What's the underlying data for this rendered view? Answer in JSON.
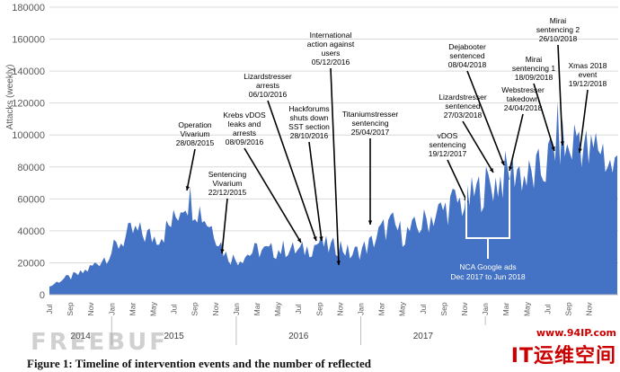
{
  "chart_data": {
    "type": "area",
    "ylabel": "Attacks (weekly)",
    "ylim": [
      0,
      180000
    ],
    "yticks": [
      0,
      20000,
      40000,
      60000,
      80000,
      100000,
      120000,
      140000,
      160000,
      180000
    ],
    "ytick_labels": [
      "0",
      "20000",
      "40000",
      "60000",
      "80000",
      "100000",
      "120000",
      "140000",
      "160000",
      "180000"
    ],
    "fill_color": "#4472c4",
    "month_labels": [
      "Jul",
      "Sep",
      "Nov",
      "Jan",
      "Mar",
      "May",
      "Jul",
      "Sep",
      "Nov",
      "Jan",
      "Mar",
      "May",
      "Jul",
      "Sep",
      "Nov",
      "Jan",
      "Mar",
      "May",
      "Jul",
      "Sep",
      "Nov",
      "Jan",
      "Mar",
      "May",
      "Jul",
      "Sep",
      "Nov"
    ],
    "year_labels": [
      "2014",
      "2015",
      "2016",
      "2017"
    ],
    "x": [
      "2014-07",
      "2014-08",
      "2014-09",
      "2014-10",
      "2014-11",
      "2014-12",
      "2015-01",
      "2015-02",
      "2015-03",
      "2015-04",
      "2015-05",
      "2015-06",
      "2015-07",
      "2015-08",
      "2015-09",
      "2015-10",
      "2015-11",
      "2015-12",
      "2016-01",
      "2016-02",
      "2016-03",
      "2016-04",
      "2016-05",
      "2016-06",
      "2016-07",
      "2016-08",
      "2016-09",
      "2016-10",
      "2016-11",
      "2016-12",
      "2017-01",
      "2017-02",
      "2017-03",
      "2017-04",
      "2017-05",
      "2017-06",
      "2017-07",
      "2017-08",
      "2017-09",
      "2017-10",
      "2017-11",
      "2017-12",
      "2018-01",
      "2018-02",
      "2018-03",
      "2018-04",
      "2018-05",
      "2018-06",
      "2018-07",
      "2018-08",
      "2018-09",
      "2018-10",
      "2018-11",
      "2018-12",
      "2019-01"
    ],
    "values": [
      5000,
      9000,
      11000,
      13000,
      17000,
      22000,
      27000,
      34000,
      39000,
      38000,
      36000,
      39000,
      46000,
      62000,
      58000,
      48000,
      40000,
      25000,
      22000,
      25000,
      28000,
      27000,
      28000,
      29000,
      27000,
      29000,
      33000,
      29000,
      31000,
      25000,
      28000,
      32000,
      40000,
      44000,
      38000,
      40000,
      45000,
      50000,
      53000,
      58000,
      57000,
      63000,
      68000,
      70000,
      75000,
      80000,
      72000,
      75000,
      82000,
      100000,
      88000,
      103000,
      85000,
      96000,
      80000
    ],
    "series_name": "",
    "annotations": [
      {
        "lines": [
          "Operation",
          "Vivarium",
          "28/08/2015"
        ]
      },
      {
        "lines": [
          "Sentencing",
          "Vivarium",
          "22/12/2015"
        ]
      },
      {
        "lines": [
          "Krebs vDOS",
          "leaks and",
          "arrests",
          "08/09/2016"
        ]
      },
      {
        "lines": [
          "Lizardstresser",
          "arrests",
          "06/10/2016"
        ]
      },
      {
        "lines": [
          "Hackforums",
          "shuts down",
          "SST section",
          "28/10/2016"
        ]
      },
      {
        "lines": [
          "International",
          "action against",
          "users",
          "05/12/2016"
        ]
      },
      {
        "lines": [
          "Titaniumstresser",
          "sentencing",
          "25/04/2017"
        ]
      },
      {
        "lines": [
          "vDOS",
          "sentencing",
          "19/12/2017"
        ]
      },
      {
        "lines": [
          "Lizardstresser",
          "sentenced",
          "27/03/2018"
        ]
      },
      {
        "lines": [
          "Dejabooter",
          "sentenced",
          "08/04/2018"
        ]
      },
      {
        "lines": [
          "Webstresser",
          "takedown",
          "24/04/2018"
        ]
      },
      {
        "lines": [
          "Mirai",
          "sentencing 1",
          "18/09/2018"
        ]
      },
      {
        "lines": [
          "Mirai",
          "sentencing 2",
          "26/10/2018"
        ]
      },
      {
        "lines": [
          "Xmas 2018",
          "event",
          "19/12/2018"
        ]
      }
    ],
    "bracket_label": [
      "NCA Google ads",
      "Dec 2017 to Jun 2018"
    ]
  },
  "caption": "Figure 1: Timeline of intervention events and the number of reflected",
  "watermark_left": "FREEBUF",
  "watermark_url": "www.94IP.com",
  "watermark_brand": "IT运维空间"
}
